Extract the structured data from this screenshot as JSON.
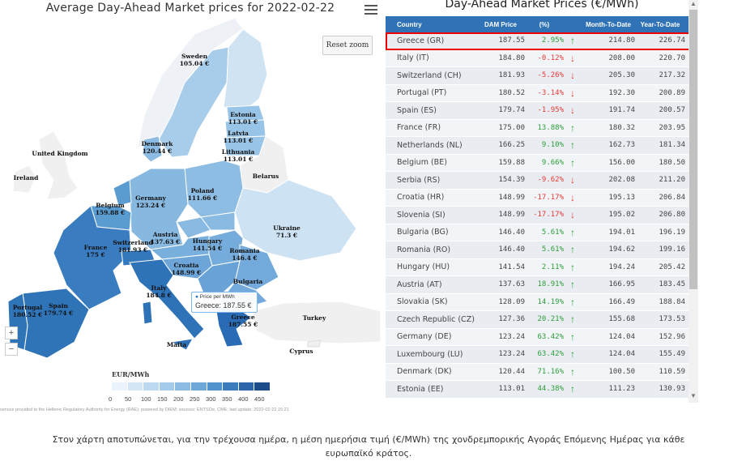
{
  "map": {
    "title": "Average Day-Ahead Market prices for 2022-02-22",
    "reset_zoom_label": "Reset zoom",
    "zoom_in_label": "+",
    "zoom_out_label": "−",
    "legend_title": "EUR/MWh",
    "legend_ticks": [
      "0",
      "50",
      "100",
      "150",
      "200",
      "250",
      "300",
      "350",
      "400",
      "450"
    ],
    "legend_colors": [
      "#eaf3fb",
      "#d3e6f6",
      "#bcd9f0",
      "#a5cbea",
      "#8cbce3",
      "#6ea8d8",
      "#5092cc",
      "#3b7cbd",
      "#2a66a9",
      "#1c4d8a"
    ],
    "credits": "service provided to the Hellenic Regulatory Authority for Energy (RAE); powered by DIEM; sources: ENTSOe, CME; last update: 2022-02-22 15:21",
    "tooltip": {
      "series": "Price per MWh",
      "value": "Greece: 187.55 €"
    },
    "labels": [
      {
        "name": "Sweden",
        "value": "105.04 €"
      },
      {
        "name": "Estonia",
        "value": "113.01 €"
      },
      {
        "name": "Latvia",
        "value": "113.01 €"
      },
      {
        "name": "Lithuania",
        "value": "113.01 €"
      },
      {
        "name": "Denmark",
        "value": "120.44 €"
      },
      {
        "name": "United Kingdom",
        "value": ""
      },
      {
        "name": "Ireland",
        "value": ""
      },
      {
        "name": "Belarus",
        "value": ""
      },
      {
        "name": "Poland",
        "value": "111.66 €"
      },
      {
        "name": "Germany",
        "value": "123.24 €"
      },
      {
        "name": "Belgium",
        "value": "159.88 €"
      },
      {
        "name": "Ukraine",
        "value": "71.3 €"
      },
      {
        "name": "Austria",
        "value": "137.63 €"
      },
      {
        "name": "France",
        "value": "175 €"
      },
      {
        "name": "Switzerland",
        "value": "181.93 €"
      },
      {
        "name": "Hungary",
        "value": "141.54 €"
      },
      {
        "name": "Romania",
        "value": "146.4 €"
      },
      {
        "name": "Croatia",
        "value": "148.99 €"
      },
      {
        "name": "Bulgaria",
        "value": ""
      },
      {
        "name": "Italy",
        "value": "184.8 €"
      },
      {
        "name": "Portugal",
        "value": "180.52 €"
      },
      {
        "name": "Spain",
        "value": "179.74 €"
      },
      {
        "name": "Greece",
        "value": "187.55 €"
      },
      {
        "name": "Turkey",
        "value": ""
      },
      {
        "name": "Malta",
        "value": ""
      },
      {
        "name": "Cyprus",
        "value": ""
      }
    ]
  },
  "table": {
    "title": "Day-Ahead Market Prices (€/MWh)",
    "headers": [
      "Country",
      "DAM Price",
      "(%)",
      "Month-To-Date",
      "Year-To-Date"
    ],
    "rows": [
      {
        "country": "Greece (GR)",
        "price": "187.55",
        "pct": "2.95%",
        "dir": "up",
        "mtd": "214.80",
        "ytd": "226.74",
        "highlight": true
      },
      {
        "country": "Italy (IT)",
        "price": "184.80",
        "pct": "-0.12%",
        "dir": "down",
        "mtd": "208.00",
        "ytd": "220.70"
      },
      {
        "country": "Switzerland (CH)",
        "price": "181.93",
        "pct": "-5.26%",
        "dir": "down",
        "mtd": "205.30",
        "ytd": "217.32"
      },
      {
        "country": "Portugal (PT)",
        "price": "180.52",
        "pct": "-3.14%",
        "dir": "down",
        "mtd": "192.30",
        "ytd": "200.89"
      },
      {
        "country": "Spain (ES)",
        "price": "179.74",
        "pct": "-1.95%",
        "dir": "down",
        "mtd": "191.74",
        "ytd": "200.57"
      },
      {
        "country": "France (FR)",
        "price": "175.00",
        "pct": "13.88%",
        "dir": "up",
        "mtd": "180.32",
        "ytd": "203.95"
      },
      {
        "country": "Netherlands (NL)",
        "price": "166.25",
        "pct": "9.10%",
        "dir": "up",
        "mtd": "162.73",
        "ytd": "181.34"
      },
      {
        "country": "Belgium (BE)",
        "price": "159.88",
        "pct": "9.66%",
        "dir": "up",
        "mtd": "156.00",
        "ytd": "180.50"
      },
      {
        "country": "Serbia (RS)",
        "price": "154.39",
        "pct": "-9.62%",
        "dir": "down",
        "mtd": "202.08",
        "ytd": "211.20"
      },
      {
        "country": "Croatia (HR)",
        "price": "148.99",
        "pct": "-17.17%",
        "dir": "down",
        "mtd": "195.13",
        "ytd": "206.84"
      },
      {
        "country": "Slovenia (SI)",
        "price": "148.99",
        "pct": "-17.17%",
        "dir": "down",
        "mtd": "195.02",
        "ytd": "206.80"
      },
      {
        "country": "Bulgaria (BG)",
        "price": "146.40",
        "pct": "5.61%",
        "dir": "up",
        "mtd": "194.01",
        "ytd": "196.19"
      },
      {
        "country": "Romania (RO)",
        "price": "146.40",
        "pct": "5.61%",
        "dir": "up",
        "mtd": "194.62",
        "ytd": "199.16"
      },
      {
        "country": "Hungary (HU)",
        "price": "141.54",
        "pct": "2.11%",
        "dir": "up",
        "mtd": "194.24",
        "ytd": "205.42"
      },
      {
        "country": "Austria (AT)",
        "price": "137.63",
        "pct": "18.91%",
        "dir": "up",
        "mtd": "166.95",
        "ytd": "183.45"
      },
      {
        "country": "Slovakia (SK)",
        "price": "128.09",
        "pct": "14.19%",
        "dir": "up",
        "mtd": "166.49",
        "ytd": "188.84"
      },
      {
        "country": "Czech Republic (CZ)",
        "price": "127.36",
        "pct": "20.21%",
        "dir": "up",
        "mtd": "155.68",
        "ytd": "173.53"
      },
      {
        "country": "Germany (DE)",
        "price": "123.24",
        "pct": "63.42%",
        "dir": "up",
        "mtd": "124.04",
        "ytd": "152.96"
      },
      {
        "country": "Luxembourg (LU)",
        "price": "123.24",
        "pct": "63.42%",
        "dir": "up",
        "mtd": "124.04",
        "ytd": "155.49"
      },
      {
        "country": "Denmark (DK)",
        "price": "120.44",
        "pct": "71.16%",
        "dir": "up",
        "mtd": "100.50",
        "ytd": "110.59"
      },
      {
        "country": "Estonia (EE)",
        "price": "113.01",
        "pct": "44.38%",
        "dir": "up",
        "mtd": "111.23",
        "ytd": "130.93"
      }
    ],
    "colors": {
      "header": "#2f72b6",
      "positive": "#2e9d3a",
      "negative": "#e53935",
      "highlight_border": "#e00000"
    }
  },
  "caption": "Στον χάρτη αποτυπώνεται, για την τρέχουσα ημέρα, η μέση ημερήσια τιμή (€/MWh) της χονδρεμπορικής Αγοράς Επόμενης Ημέρας για κάθε ευρωπαϊκό κράτος."
}
